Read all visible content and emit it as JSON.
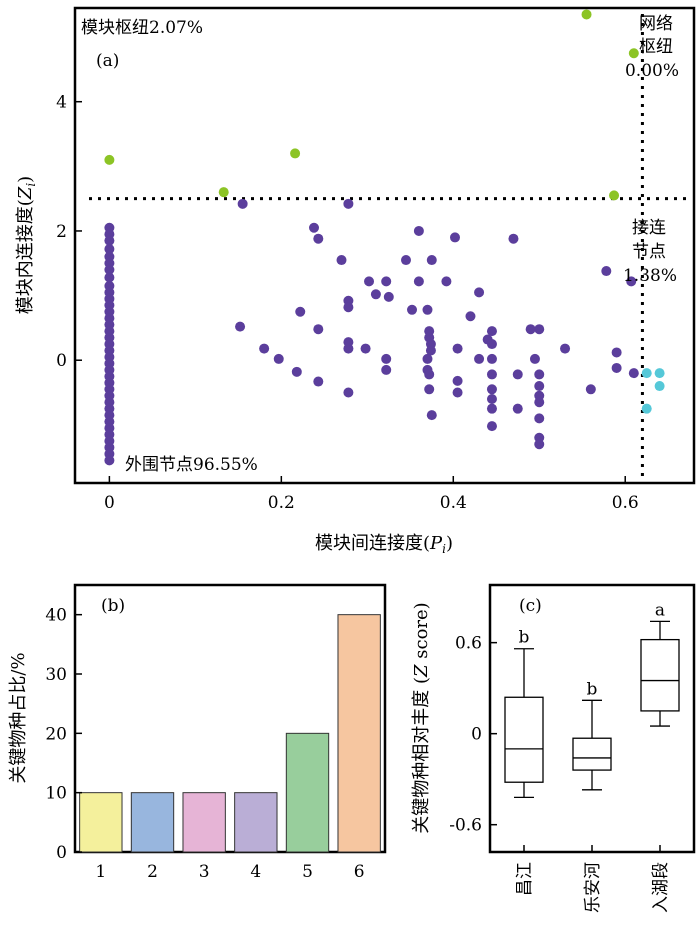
{
  "chart_data": [
    {
      "id": "a",
      "type": "scatter",
      "panel_label": "(a)",
      "xlabel": "模块间连接度(",
      "xlabel_var": "P",
      "xlabel_sub": "i",
      "xlabel_close": ")",
      "ylabel": "模块内连接度(",
      "ylabel_var": "Z",
      "ylabel_sub": "i",
      "ylabel_close": ")",
      "xlim": [
        -0.04,
        0.68
      ],
      "ylim": [
        -1.9,
        5.45
      ],
      "xticks": [
        0,
        0.2,
        0.4,
        0.6
      ],
      "xtick_labels": [
        "0",
        "0.2",
        "0.4",
        "0.6"
      ],
      "yticks": [
        0,
        2,
        4
      ],
      "ytick_labels": [
        "0",
        "2",
        "4"
      ],
      "thresholds": {
        "x": 0.62,
        "y": 2.5
      },
      "annotations": {
        "module_hubs": "模块枢纽2.07%",
        "network_hubs_line1": "网络",
        "network_hubs_line2": "枢纽",
        "network_hubs_pct": "0.00%",
        "connectors_line1": "接连",
        "connectors_line2": "节点",
        "connectors_pct": "1.38%",
        "peripherals": "外围节点96.55%"
      },
      "colors": {
        "peripheral": "#5B3E9C",
        "hub": "#8CC425",
        "connector": "#55C8D8"
      },
      "series": [
        {
          "group": "hub",
          "points": [
            [
              0,
              3.1
            ],
            [
              0.133,
              2.6
            ],
            [
              0.216,
              3.2
            ],
            [
              0.555,
              5.35
            ],
            [
              0.587,
              2.55
            ],
            [
              0.61,
              4.75
            ]
          ]
        },
        {
          "group": "connector",
          "points": [
            [
              0.625,
              -0.2
            ],
            [
              0.64,
              -0.2
            ],
            [
              0.64,
              -0.4
            ],
            [
              0.625,
              -0.75
            ]
          ]
        },
        {
          "group": "peripheral",
          "points": [
            [
              0,
              2.05
            ],
            [
              0,
              1.95
            ],
            [
              0,
              1.85
            ],
            [
              0,
              1.72
            ],
            [
              0,
              1.6
            ],
            [
              0,
              1.5
            ],
            [
              0,
              1.4
            ],
            [
              0,
              1.28
            ],
            [
              0,
              1.15
            ],
            [
              0,
              1.05
            ],
            [
              0,
              0.95
            ],
            [
              0,
              0.85
            ],
            [
              0,
              0.75
            ],
            [
              0,
              0.65
            ],
            [
              0,
              0.55
            ],
            [
              0,
              0.45
            ],
            [
              0,
              0.35
            ],
            [
              0,
              0.25
            ],
            [
              0,
              0.15
            ],
            [
              0,
              0.05
            ],
            [
              0,
              -0.05
            ],
            [
              0,
              -0.15
            ],
            [
              0,
              -0.25
            ],
            [
              0,
              -0.35
            ],
            [
              0,
              -0.45
            ],
            [
              0,
              -0.55
            ],
            [
              0,
              -0.65
            ],
            [
              0,
              -0.75
            ],
            [
              0,
              -0.85
            ],
            [
              0,
              -0.95
            ],
            [
              0,
              -1.05
            ],
            [
              0,
              -1.15
            ],
            [
              0,
              -1.25
            ],
            [
              0,
              -1.35
            ],
            [
              0,
              -1.45
            ],
            [
              0,
              -1.55
            ],
            [
              0.155,
              2.42
            ],
            [
              0.278,
              2.42
            ],
            [
              0.238,
              2.05
            ],
            [
              0.243,
              1.88
            ],
            [
              0.27,
              1.55
            ],
            [
              0.152,
              0.52
            ],
            [
              0.18,
              0.18
            ],
            [
              0.197,
              0.02
            ],
            [
              0.222,
              0.75
            ],
            [
              0.218,
              -0.18
            ],
            [
              0.243,
              -0.33
            ],
            [
              0.243,
              0.48
            ],
            [
              0.278,
              0.92
            ],
            [
              0.278,
              0.82
            ],
            [
              0.278,
              0.28
            ],
            [
              0.278,
              0.18
            ],
            [
              0.278,
              -0.5
            ],
            [
              0.302,
              1.22
            ],
            [
              0.298,
              0.18
            ],
            [
              0.31,
              1.02
            ],
            [
              0.322,
              1.22
            ],
            [
              0.325,
              0.98
            ],
            [
              0.322,
              0.02
            ],
            [
              0.322,
              -0.15
            ],
            [
              0.345,
              1.55
            ],
            [
              0.352,
              0.78
            ],
            [
              0.36,
              2.0
            ],
            [
              0.36,
              1.22
            ],
            [
              0.37,
              0.78
            ],
            [
              0.37,
              0.02
            ],
            [
              0.37,
              -0.15
            ],
            [
              0.375,
              1.55
            ],
            [
              0.372,
              0.45
            ],
            [
              0.372,
              0.35
            ],
            [
              0.374,
              0.25
            ],
            [
              0.374,
              0.15
            ],
            [
              0.372,
              -0.22
            ],
            [
              0.372,
              -0.45
            ],
            [
              0.375,
              -0.85
            ],
            [
              0.392,
              1.22
            ],
            [
              0.402,
              1.9
            ],
            [
              0.405,
              0.18
            ],
            [
              0.405,
              -0.32
            ],
            [
              0.405,
              -0.5
            ],
            [
              0.42,
              0.68
            ],
            [
              0.43,
              1.05
            ],
            [
              0.43,
              0.02
            ],
            [
              0.44,
              0.32
            ],
            [
              0.445,
              0.45
            ],
            [
              0.445,
              0.25
            ],
            [
              0.445,
              0.02
            ],
            [
              0.445,
              -0.22
            ],
            [
              0.445,
              -0.45
            ],
            [
              0.445,
              -0.6
            ],
            [
              0.445,
              -0.75
            ],
            [
              0.445,
              -1.02
            ],
            [
              0.47,
              1.88
            ],
            [
              0.475,
              -0.22
            ],
            [
              0.475,
              -0.75
            ],
            [
              0.49,
              0.48
            ],
            [
              0.5,
              0.48
            ],
            [
              0.495,
              0.02
            ],
            [
              0.5,
              -0.22
            ],
            [
              0.5,
              -0.4
            ],
            [
              0.5,
              -0.55
            ],
            [
              0.5,
              -0.65
            ],
            [
              0.5,
              -0.9
            ],
            [
              0.5,
              -1.2
            ],
            [
              0.5,
              -1.3
            ],
            [
              0.53,
              0.18
            ],
            [
              0.56,
              -0.45
            ],
            [
              0.578,
              1.38
            ],
            [
              0.59,
              0.12
            ],
            [
              0.59,
              -0.12
            ],
            [
              0.607,
              1.22
            ],
            [
              0.61,
              -0.2
            ]
          ]
        }
      ]
    },
    {
      "id": "b",
      "type": "bar",
      "panel_label": "(b)",
      "ylabel": "关键物种占比/%",
      "categories": [
        "1",
        "2",
        "3",
        "4",
        "5",
        "6"
      ],
      "values": [
        10,
        10,
        10,
        10,
        20,
        40
      ],
      "colors": [
        "#F4F09C",
        "#98B6DE",
        "#E6B4D6",
        "#BAAED6",
        "#98CE9C",
        "#F6C6A0"
      ],
      "ylim": [
        0,
        45
      ],
      "yticks": [
        0,
        10,
        20,
        30,
        40
      ],
      "ytick_labels": [
        "0",
        "10",
        "20",
        "30",
        "40"
      ]
    },
    {
      "id": "c",
      "type": "box",
      "panel_label": "(c)",
      "ylabel": "关键物种相对丰度 (",
      "ylabel_var": "Z",
      "ylabel_rest": " score)",
      "categories": [
        "昌江",
        "乐安河",
        "入湖段"
      ],
      "ylim": [
        -0.78,
        0.98
      ],
      "yticks": [
        -0.6,
        0,
        0.6
      ],
      "ytick_labels": [
        "-0.6",
        "0",
        "0.6"
      ],
      "boxes": [
        {
          "min": -0.42,
          "q1": -0.32,
          "median": -0.1,
          "q3": 0.24,
          "max": 0.56,
          "letter": "b"
        },
        {
          "min": -0.37,
          "q1": -0.24,
          "median": -0.16,
          "q3": -0.03,
          "max": 0.22,
          "letter": "b"
        },
        {
          "min": 0.05,
          "q1": 0.15,
          "median": 0.35,
          "q3": 0.62,
          "max": 0.74,
          "letter": "a"
        }
      ]
    }
  ]
}
